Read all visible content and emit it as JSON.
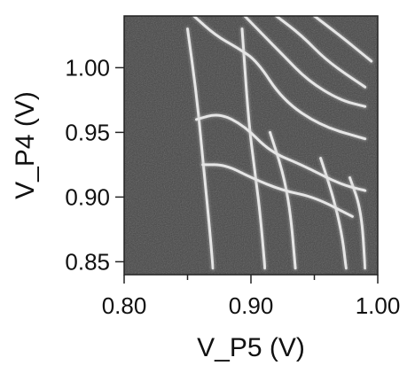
{
  "chart_data": {
    "type": "heatmap",
    "title": "",
    "xlabel": "V_P5 (V)",
    "ylabel": "V_P4 (V)",
    "xlim": [
      0.8,
      1.0
    ],
    "ylim": [
      0.84,
      1.04
    ],
    "x_ticks": [
      {
        "value": 0.8,
        "label": "0.80"
      },
      {
        "value": 0.9,
        "label": "0.90"
      },
      {
        "value": 1.0,
        "label": "1.00"
      }
    ],
    "x_minor_ticks": [
      0.85,
      0.95
    ],
    "y_ticks": [
      {
        "value": 0.85,
        "label": "0.85"
      },
      {
        "value": 0.9,
        "label": "0.90"
      },
      {
        "value": 0.95,
        "label": "0.95"
      },
      {
        "value": 1.0,
        "label": "1.00"
      }
    ],
    "colormap": "grayscale",
    "background_color": "#444444",
    "line_color": "#e6e6e6",
    "charge_transition_lines": [
      {
        "name": "steep-1",
        "points": [
          [
            0.85,
            1.03
          ],
          [
            0.857,
            0.98
          ],
          [
            0.862,
            0.93
          ],
          [
            0.867,
            0.88
          ],
          [
            0.87,
            0.845
          ]
        ]
      },
      {
        "name": "steep-2",
        "points": [
          [
            0.893,
            1.03
          ],
          [
            0.898,
            0.96
          ],
          [
            0.903,
            0.92
          ],
          [
            0.907,
            0.89
          ],
          [
            0.911,
            0.845
          ]
        ]
      },
      {
        "name": "steep-3",
        "points": [
          [
            0.915,
            0.95
          ],
          [
            0.925,
            0.92
          ],
          [
            0.931,
            0.89
          ],
          [
            0.935,
            0.845
          ]
        ]
      },
      {
        "name": "steep-4",
        "points": [
          [
            0.955,
            0.93
          ],
          [
            0.965,
            0.9
          ],
          [
            0.972,
            0.87
          ],
          [
            0.975,
            0.845
          ]
        ]
      },
      {
        "name": "steep-5",
        "points": [
          [
            0.978,
            0.915
          ],
          [
            0.987,
            0.89
          ],
          [
            0.99,
            0.845
          ]
        ]
      },
      {
        "name": "sweep-1",
        "points": [
          [
            0.855,
            1.04
          ],
          [
            0.872,
            1.025
          ],
          [
            0.89,
            1.015
          ],
          [
            0.905,
            1.005
          ],
          [
            0.925,
            0.975
          ],
          [
            0.955,
            0.955
          ],
          [
            0.99,
            0.945
          ]
        ]
      },
      {
        "name": "sweep-2",
        "points": [
          [
            0.857,
            0.96
          ],
          [
            0.875,
            0.965
          ],
          [
            0.895,
            0.955
          ],
          [
            0.915,
            0.935
          ],
          [
            0.94,
            0.925
          ],
          [
            0.97,
            0.91
          ],
          [
            0.99,
            0.905
          ]
        ]
      },
      {
        "name": "sweep-3",
        "points": [
          [
            0.862,
            0.925
          ],
          [
            0.88,
            0.925
          ],
          [
            0.9,
            0.915
          ],
          [
            0.925,
            0.905
          ],
          [
            0.95,
            0.9
          ],
          [
            0.98,
            0.885
          ]
        ]
      },
      {
        "name": "sweep-top-1",
        "points": [
          [
            0.895,
            1.04
          ],
          [
            0.91,
            1.025
          ],
          [
            0.925,
            1.01
          ],
          [
            0.945,
            0.99
          ],
          [
            0.97,
            0.975
          ],
          [
            0.99,
            0.97
          ]
        ]
      },
      {
        "name": "sweep-top-2",
        "points": [
          [
            0.92,
            1.04
          ],
          [
            0.94,
            1.025
          ],
          [
            0.96,
            1.005
          ],
          [
            0.99,
            0.985
          ]
        ]
      },
      {
        "name": "sweep-top-3",
        "points": [
          [
            0.95,
            1.04
          ],
          [
            0.97,
            1.025
          ],
          [
            0.995,
            1.005
          ]
        ]
      }
    ]
  }
}
